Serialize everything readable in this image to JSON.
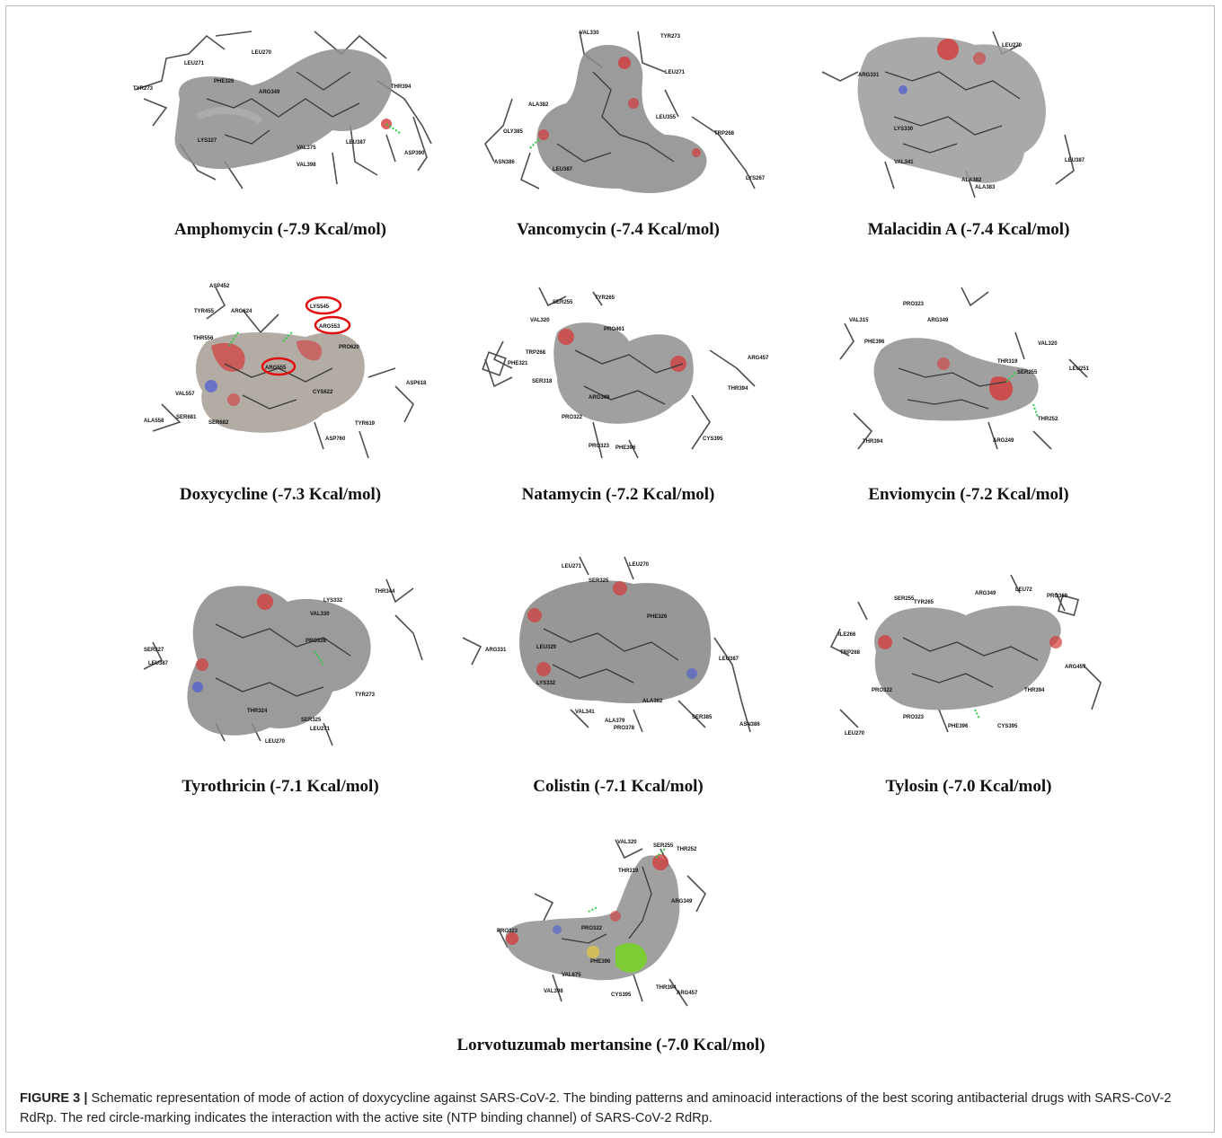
{
  "figure": {
    "number_label": "FIGURE 3 |",
    "caption": "Schematic representation of mode of action of doxycycline against SARS-CoV-2. The binding patterns and aminoacid interactions of the best scoring antibacterial drugs with SARS-CoV-2 RdRp. The red circle-marking indicates the interaction with the active site (NTP binding channel) of SARS-CoV-2 RdRp."
  },
  "panels": [
    {
      "label": "Amphomycin (-7.9 Kcal/mol)",
      "residues": [
        "LEU270",
        "LEU271",
        "TYR273",
        "PHE326",
        "ARG349",
        "THR394",
        "LEU387",
        "ASP390",
        "VAL375",
        "VAL398",
        "LYS327"
      ]
    },
    {
      "label": "Vancomycin (-7.4 Kcal/mol)",
      "residues": [
        "VAL330",
        "TYR273",
        "LEU271",
        "ALA382",
        "GLY385",
        "ASN386",
        "LEU387",
        "LEU355",
        "TRP268",
        "LYS267"
      ]
    },
    {
      "label": "Malacidin A (-7.4 Kcal/mol)",
      "residues": [
        "LEU270",
        "ARG331",
        "LYS330",
        "VAL341",
        "ALA382",
        "ALA383",
        "LEU387"
      ]
    },
    {
      "label": "Doxycycline (-7.3 Kcal/mol)",
      "residues": [
        "ASP452",
        "TYR455",
        "ARG624",
        "LYS545",
        "ARG553",
        "THR556",
        "ARG555",
        "VAL557",
        "ALA558",
        "SER681",
        "SER682",
        "CYS622",
        "ASP618",
        "TYR619",
        "ASP760",
        "PRO620"
      ],
      "highlighted": [
        "LYS545",
        "ARG553",
        "ARG555"
      ]
    },
    {
      "label": "Natamycin (-7.2 Kcal/mol)",
      "residues": [
        "SER255",
        "TYR265",
        "VAL320",
        "PRO461",
        "TRP268",
        "PHE321",
        "SER318",
        "ARG457",
        "THR394",
        "PRO322",
        "ARG349",
        "PRO323",
        "PHE396",
        "CYS395"
      ]
    },
    {
      "label": "Enviomycin (-7.2 Kcal/mol)",
      "residues": [
        "PRO323",
        "ARG349",
        "VAL315",
        "PHE396",
        "VAL320",
        "THR319",
        "SER255",
        "LEU251",
        "THR394",
        "THR252",
        "ARG249"
      ]
    },
    {
      "label": "Tyrothricin (-7.1 Kcal/mol)",
      "residues": [
        "LYS332",
        "THR344",
        "VAL330",
        "SER327",
        "LEU387",
        "PRO328",
        "TYR273",
        "THR324",
        "SER325",
        "LEU271",
        "LEU270"
      ]
    },
    {
      "label": "Colistin (-7.1 Kcal/mol)",
      "residues": [
        "LEU271",
        "LEU270",
        "SER325",
        "ARG331",
        "LEU329",
        "PHE326",
        "LEU387",
        "LYS332",
        "VAL341",
        "ALA379",
        "PRO378",
        "ALA382",
        "SER385",
        "ASN386"
      ]
    },
    {
      "label": "Tylosin (-7.0 Kcal/mol)",
      "residues": [
        "SER255",
        "TYR265",
        "ARG349",
        "LEU72",
        "PRO369",
        "ILE266",
        "TRP268",
        "ARG457",
        "THR394",
        "PRO322",
        "PRO323",
        "PHE396",
        "CYS395",
        "LEU270"
      ]
    },
    {
      "label": "Lorvotuzumab mertansine (-7.0 Kcal/mol)",
      "residues": [
        "VAL320",
        "SER255",
        "THR252",
        "THR319",
        "ARG349",
        "PRO322",
        "PHE396",
        "VAL675",
        "VAL398",
        "CYS395",
        "THR394",
        "ARG457",
        "PRO323"
      ]
    }
  ],
  "colors": {
    "surface": "#8f8f8f",
    "oxygen": "#d43a3a",
    "nitrogen": "#4a5bd6",
    "sulfur": "#e0c34a",
    "chlorine": "#7ad02a",
    "hbond": "#2ecc40",
    "highlight": "#e01010"
  }
}
